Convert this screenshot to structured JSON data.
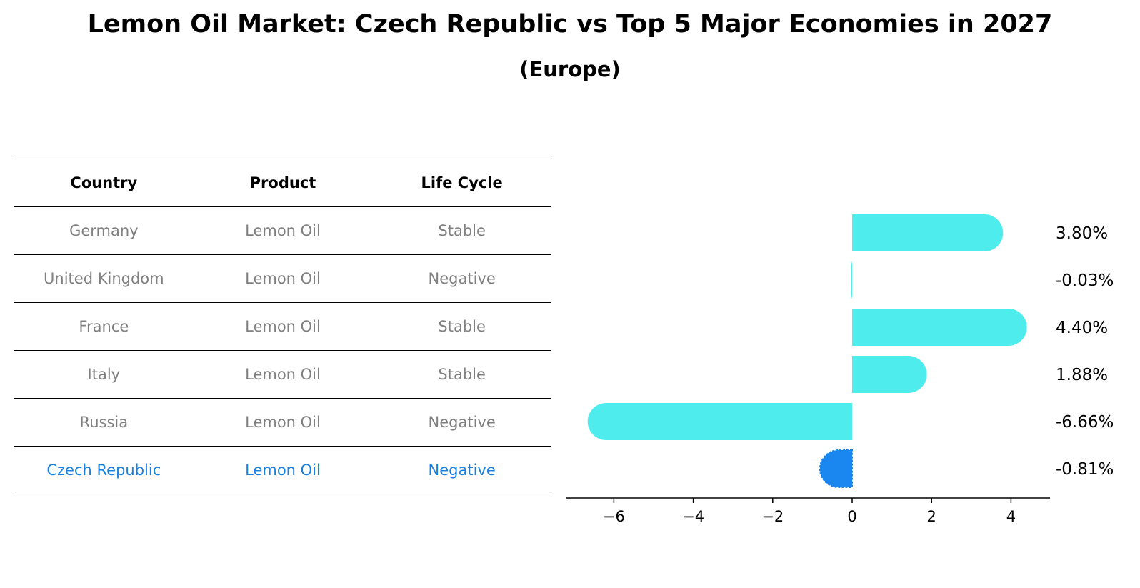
{
  "title": "Lemon Oil Market: Czech Republic vs Top 5 Major Economies in 2027",
  "subtitle": "(Europe)",
  "table": {
    "headers": [
      "Country",
      "Product",
      "Life Cycle"
    ],
    "rows": [
      {
        "country": "Germany",
        "product": "Lemon Oil",
        "life_cycle": "Stable"
      },
      {
        "country": "United Kingdom",
        "product": "Lemon Oil",
        "life_cycle": "Negative"
      },
      {
        "country": "France",
        "product": "Lemon Oil",
        "life_cycle": "Stable"
      },
      {
        "country": "Italy",
        "product": "Lemon Oil",
        "life_cycle": "Stable"
      },
      {
        "country": "Russia",
        "product": "Lemon Oil",
        "life_cycle": "Negative"
      },
      {
        "country": "Czech Republic",
        "product": "Lemon Oil",
        "life_cycle": "Negative"
      }
    ]
  },
  "colors": {
    "bar": "#4eeced",
    "highlight": "#1a86f0",
    "muted_text": "#808080",
    "highlight_text": "#1a80e0"
  },
  "chart_data": {
    "type": "bar",
    "orientation": "horizontal",
    "categories": [
      "Germany",
      "United Kingdom",
      "France",
      "Italy",
      "Russia",
      "Czech Republic"
    ],
    "values": [
      3.8,
      -0.03,
      4.4,
      1.88,
      -6.66,
      -0.81
    ],
    "value_labels": [
      "3.80%",
      "-0.03%",
      "4.40%",
      "1.88%",
      "-6.66%",
      "-0.81%"
    ],
    "highlight_index": 5,
    "xlim": [
      -7.2,
      5.0
    ],
    "xticks": [
      -6,
      -4,
      -2,
      0,
      2,
      4
    ],
    "xtick_labels": [
      "−6",
      "−4",
      "−2",
      "0",
      "2",
      "4"
    ],
    "xlabel": "",
    "ylabel": "",
    "grid": false
  }
}
